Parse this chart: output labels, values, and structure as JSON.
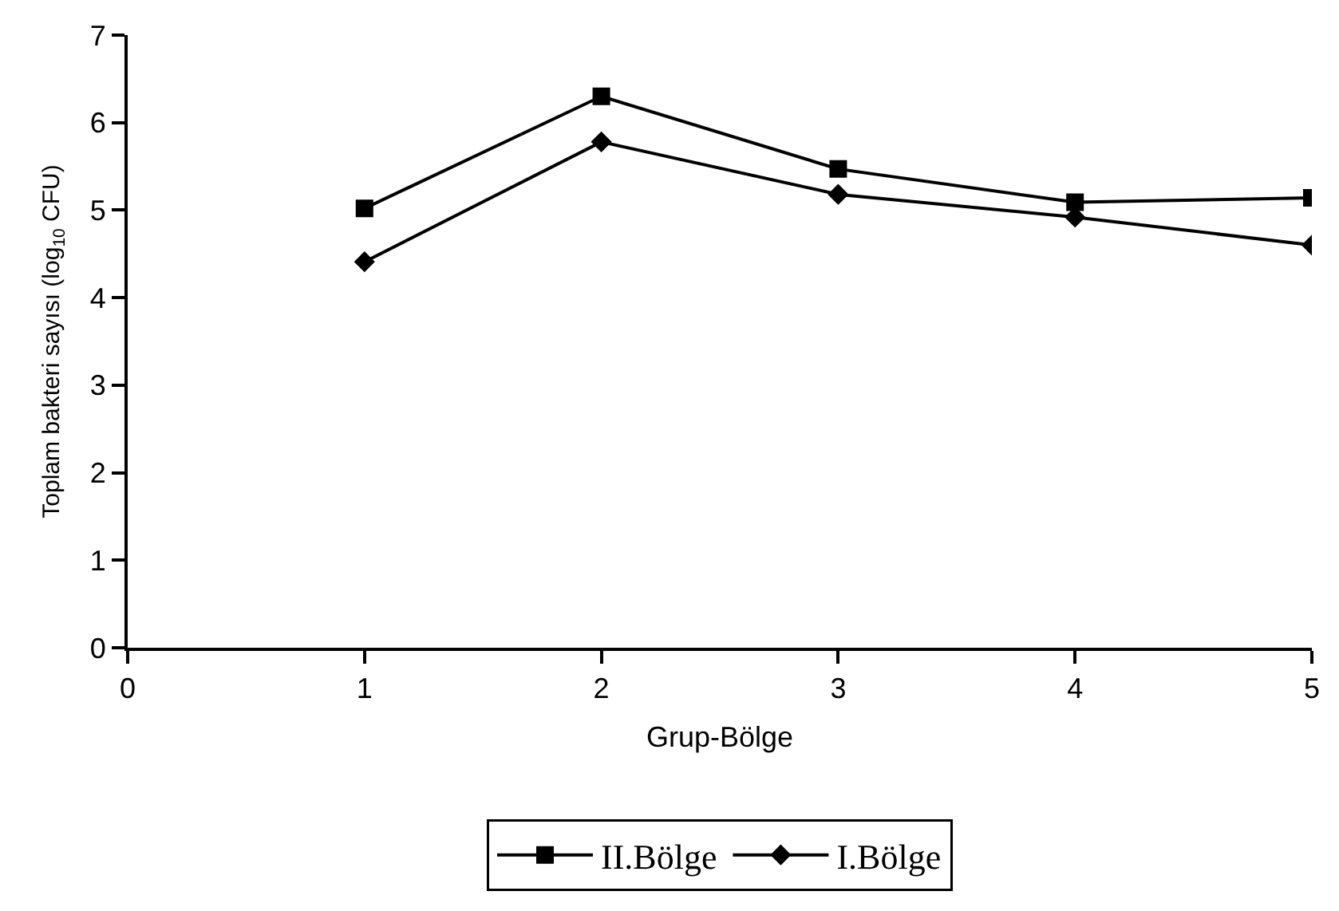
{
  "chart_data": {
    "type": "line",
    "xlabel": "Grup-Bölge",
    "ylabel": "Toplam bakteri sayısı (log$_{10}$ CFU)",
    "x": [
      1,
      2,
      3,
      4,
      5
    ],
    "series": [
      {
        "name": "II.Bölge",
        "color": "#000000",
        "marker": "square",
        "values": [
          5.02,
          6.3,
          5.47,
          5.09,
          5.14
        ]
      },
      {
        "name": "I.Bölge",
        "color": "#000000",
        "marker": "diamond",
        "values": [
          4.41,
          5.78,
          5.18,
          4.92,
          4.6
        ]
      }
    ],
    "xlim": [
      0,
      5
    ],
    "xticks": [
      0,
      1,
      2,
      3,
      4,
      5
    ],
    "ylim": [
      0,
      7
    ],
    "yticks": [
      0,
      1,
      2,
      3,
      4,
      5,
      6,
      7
    ],
    "grid": false,
    "legend": "bottom",
    "line_style": "solid"
  }
}
